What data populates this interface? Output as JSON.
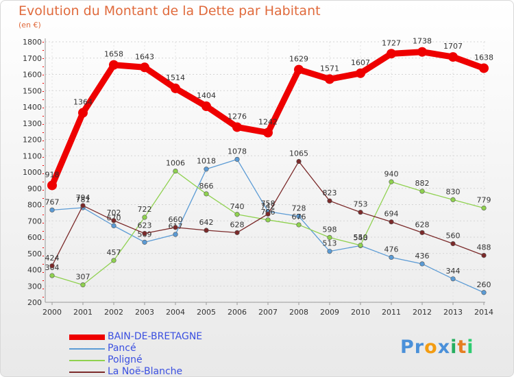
{
  "page": {
    "title": "Evolution du Montant de la Dette par Habitant",
    "subtitle": "(en €)"
  },
  "chart_data": {
    "type": "line",
    "title": "Evolution du Montant de la Dette par Habitant",
    "subtitle": "(en €)",
    "xlabel": "",
    "ylabel": "",
    "x": [
      "2000",
      "2001",
      "2002",
      "2003",
      "2004",
      "2005",
      "2006",
      "2007",
      "2008",
      "2009",
      "2010",
      "2011",
      "2012",
      "2013",
      "2014"
    ],
    "yticks": [
      200,
      300,
      400,
      500,
      600,
      700,
      800,
      900,
      1000,
      1100,
      1200,
      1300,
      1400,
      1500,
      1600,
      1700,
      1800
    ],
    "ylim": [
      200,
      1800
    ],
    "grid": true,
    "legend_position": "bottom-left",
    "series": [
      {
        "name": "BAIN-DE-BRETAGNE",
        "color": "#ee0000",
        "values": [
          918,
          1364,
          1658,
          1643,
          1514,
          1404,
          1276,
          1242,
          1629,
          1571,
          1607,
          1727,
          1738,
          1707,
          1638
        ]
      },
      {
        "name": "Pancé",
        "color": "#5b9bd5",
        "values": [
          767,
          781,
          670,
          569,
          617,
          1018,
          1078,
          758,
          728,
          513,
          548,
          476,
          436,
          344,
          260
        ]
      },
      {
        "name": "Poligné",
        "color": "#8fd14f",
        "values": [
          364,
          307,
          457,
          722,
          1006,
          866,
          740,
          706,
          676,
          598,
          550,
          940,
          882,
          830,
          779
        ]
      },
      {
        "name": "La Noë-Blanche",
        "color": "#7b2a2a",
        "values": [
          424,
          794,
          702,
          623,
          660,
          642,
          628,
          742,
          1065,
          823,
          753,
          694,
          628,
          560,
          488
        ]
      }
    ]
  },
  "legend": [
    {
      "label": "BAIN-DE-BRETAGNE",
      "color": "#ee0000"
    },
    {
      "label": "Pancé",
      "color": "#5b9bd5"
    },
    {
      "label": "Poligné",
      "color": "#8fd14f"
    },
    {
      "label": "La Noë-Blanche",
      "color": "#7b2a2a"
    }
  ],
  "logo": {
    "letters": [
      "P",
      "r",
      "o",
      "x",
      "i",
      "t",
      "i"
    ],
    "colors": [
      "#4a90d9",
      "#4a90d9",
      "#f39c12",
      "#4a90d9",
      "#27ae60",
      "#e67e22",
      "#2ecc71"
    ]
  }
}
